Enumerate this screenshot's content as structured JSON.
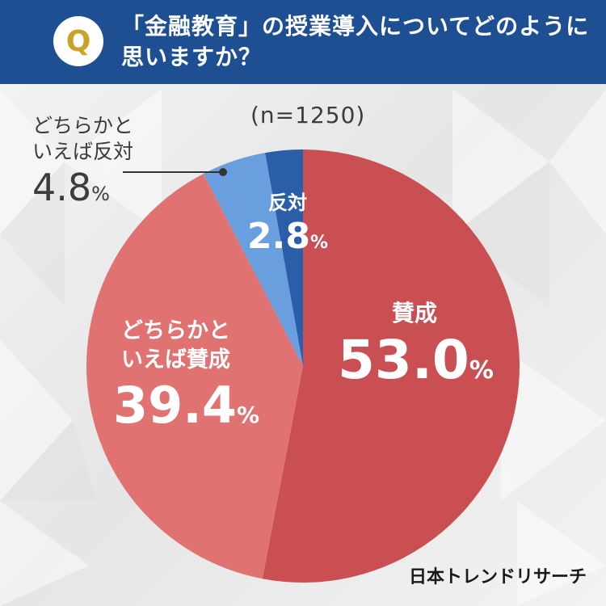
{
  "header": {
    "badge": "Q",
    "question_line1": "「金融教育」の授業導入についてどのように",
    "question_line2": "思いますか？"
  },
  "sample_size": "(n=1250)",
  "colors": {
    "header_bg": "#1f4f93",
    "badge_letter": "#c9a227",
    "agree": "#c94f52",
    "somewhat_agree": "#e07372",
    "somewhat_disagree": "#6a9fdf",
    "disagree": "#2b5ea8"
  },
  "chart_data": {
    "type": "pie",
    "categories": [
      "賛成",
      "どちらかといえば賛成",
      "どちらかといえば反対",
      "反対"
    ],
    "values": [
      53.0,
      39.4,
      4.8,
      2.8
    ],
    "unit": "%",
    "order": "clockwise from top"
  },
  "labels": {
    "agree": {
      "line1": "賛成",
      "line2": "",
      "value": "53.0",
      "unit": "%"
    },
    "somewhat_agree": {
      "line1": "どちらかと",
      "line2": "いえば賛成",
      "value": "39.4",
      "unit": "%"
    },
    "somewhat_disagree": {
      "line1": "どちらかと",
      "line2": "いえば反対",
      "value": "4.8",
      "unit": "%"
    },
    "disagree": {
      "line1": "反対",
      "line2": "",
      "value": "2.8",
      "unit": "%"
    }
  },
  "brand": "日本トレンドリサーチ"
}
